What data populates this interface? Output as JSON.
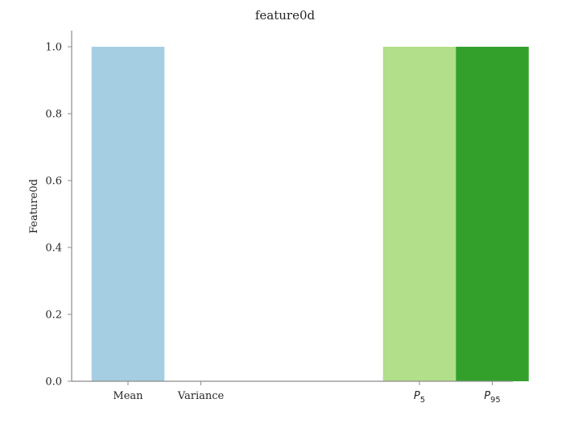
{
  "chart_data": {
    "type": "bar",
    "title": "feature0d",
    "xlabel": "",
    "ylabel": "Feature0d",
    "ylim": [
      0,
      1.05
    ],
    "yticks": [
      "0.0",
      "0.2",
      "0.4",
      "0.6",
      "0.8",
      "1.0"
    ],
    "grid": false,
    "legend": "none",
    "categories": [
      {
        "label": "Mean",
        "math": false,
        "base": "",
        "sub": ""
      },
      {
        "label": "Variance",
        "math": false,
        "base": "",
        "sub": ""
      },
      {
        "label": "",
        "math": false,
        "base": "",
        "sub": ""
      },
      {
        "label": "",
        "math": false,
        "base": "",
        "sub": ""
      },
      {
        "label": "P5",
        "math": true,
        "base": "P",
        "sub": "5"
      },
      {
        "label": "P95",
        "math": true,
        "base": "P",
        "sub": "95"
      }
    ],
    "values": [
      1.0,
      0.0,
      0.0,
      0.0,
      1.0,
      1.0
    ],
    "colors": [
      "#a6cee3",
      "#1f78b4",
      "#b2df8a",
      "#33a02c",
      "#b2df8a",
      "#33a02c"
    ]
  }
}
